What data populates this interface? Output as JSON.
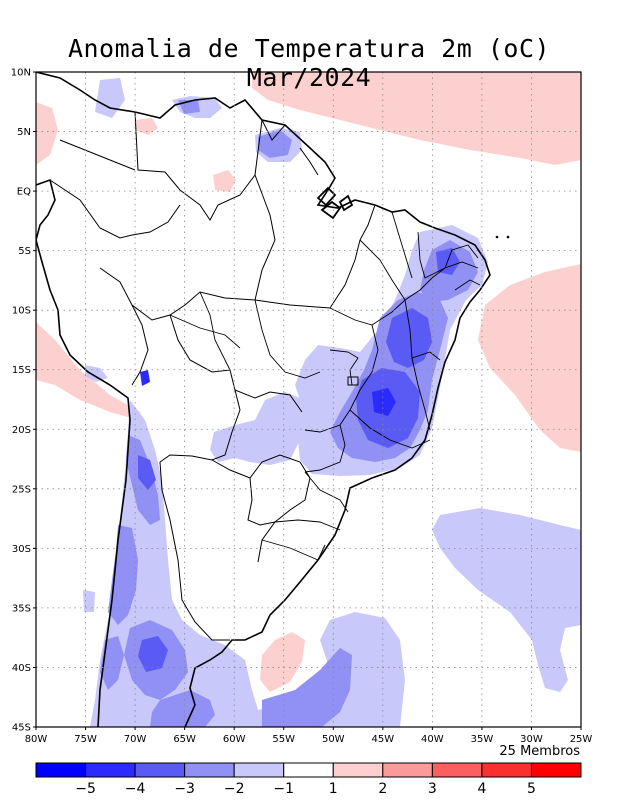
{
  "title": "Anomalia de Temperatura 2m (oC) Mar/2024",
  "members_label": "25 Membros",
  "lat_labels": [
    "10N",
    "5N",
    "EQ",
    "5S",
    "10S",
    "15S",
    "20S",
    "25S",
    "30S",
    "35S",
    "40S",
    "45S"
  ],
  "lon_labels": [
    "80W",
    "75W",
    "70W",
    "65W",
    "60W",
    "55W",
    "50W",
    "45W",
    "40W",
    "35W",
    "30W",
    "25W"
  ],
  "legend": {
    "tick_labels": [
      "−5",
      "−4",
      "−3",
      "−2",
      "−1",
      "1",
      "2",
      "3",
      "4",
      "5"
    ],
    "bin_colors": [
      "#0000ff",
      "#2b2bff",
      "#5a5af5",
      "#9090f5",
      "#c8c8fb",
      "#ffffff",
      "#fdd0d0",
      "#fb9a9a",
      "#fb6060",
      "#fa3030",
      "#ff0000"
    ]
  },
  "colors": {
    "cool_light": "#c8c8fb",
    "cool_mid": "#9090f5",
    "cool_strong": "#5a5af5",
    "cool_extreme": "#2b2bff",
    "warm_light": "#fdd0d0"
  }
}
